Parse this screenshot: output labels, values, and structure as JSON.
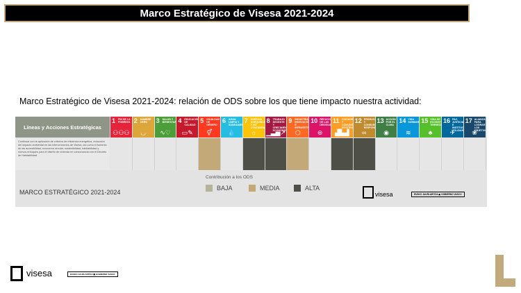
{
  "page_title": "Marco Estratégico de Visesa 2021-2024",
  "subtitle": "Marco Estratégico de Visesa 2021-2024: relación de ODS sobre los que tiene impacto nuestra actividad:",
  "table": {
    "header_label": "Líneas y Acciones Estratégicas",
    "action_text": "Continuar con la aplicación de criterios de eficiencia energética, reducción del impacto ambiental en las intervenciones de Visesa, así como el fomento de las accesibilidad, economía circular, sostenibilidad, habitabilidad y nuevos enfoques para el diseño de vivienda en consonancia con el Decreto de Habitabilidad.",
    "sdgs": [
      {
        "num": "1",
        "label": "Fin de la pobreza",
        "color": "#e5243b",
        "icon": "family-icon",
        "glyph": "⚇⚇⚇",
        "impact": "none"
      },
      {
        "num": "2",
        "label": "Hambre cero",
        "color": "#dda63a",
        "icon": "bowl-icon",
        "glyph": "◡",
        "impact": "none"
      },
      {
        "num": "3",
        "label": "Salud y bienestar",
        "color": "#4c9f38",
        "icon": "heartbeat-icon",
        "glyph": "∿♡",
        "impact": "none"
      },
      {
        "num": "4",
        "label": "Educación de calidad",
        "color": "#c5192d",
        "icon": "book-icon",
        "glyph": "▭✎",
        "impact": "none"
      },
      {
        "num": "5",
        "label": "Igualdad de género",
        "color": "#ff3a21",
        "icon": "gender-icon",
        "glyph": "⚥",
        "impact": "media"
      },
      {
        "num": "6",
        "label": "Agua limpia y saneamiento",
        "color": "#26bde2",
        "icon": "water-drop-icon",
        "glyph": "💧",
        "impact": "none"
      },
      {
        "num": "7",
        "label": "Energía asequible y no contaminante",
        "color": "#fcc30b",
        "icon": "sun-icon",
        "glyph": "☼",
        "impact": "alta"
      },
      {
        "num": "8",
        "label": "Trabajo decente y crecimiento económico",
        "color": "#a21942",
        "icon": "growth-chart-icon",
        "glyph": "▁▃▅↗",
        "impact": "alta"
      },
      {
        "num": "9",
        "label": "Industria, innovación e infraestructura",
        "color": "#fd6925",
        "icon": "cubes-icon",
        "glyph": "⬡",
        "impact": "media"
      },
      {
        "num": "10",
        "label": "Reducción de las desigualdades",
        "color": "#dd1367",
        "icon": "equal-icon",
        "glyph": "⊜",
        "impact": "none"
      },
      {
        "num": "11",
        "label": "Ciudades y comunidades sostenibles",
        "color": "#fd9d24",
        "icon": "city-icon",
        "glyph": "▟▙▟",
        "impact": "alta"
      },
      {
        "num": "12",
        "label": "Producción y consumo responsables",
        "color": "#bf8b2e",
        "icon": "infinity-icon",
        "glyph": "∞",
        "impact": "alta"
      },
      {
        "num": "13",
        "label": "Acción por el clima",
        "color": "#3f7e44",
        "icon": "eye-globe-icon",
        "glyph": "◉",
        "impact": "none"
      },
      {
        "num": "14",
        "label": "Vida submarina",
        "color": "#0a97d9",
        "icon": "fish-icon",
        "glyph": "≋",
        "impact": "none"
      },
      {
        "num": "15",
        "label": "Vida de ecosistemas terrestres",
        "color": "#56c02b",
        "icon": "tree-icon",
        "glyph": "♣",
        "impact": "none"
      },
      {
        "num": "16",
        "label": "Paz, justicia e instituciones sólidas",
        "color": "#00689d",
        "icon": "dove-icon",
        "glyph": "✈",
        "impact": "none"
      },
      {
        "num": "17",
        "label": "Alianzas para lograr los objetivos",
        "color": "#19486a",
        "icon": "flower-icon",
        "glyph": "❀",
        "impact": "none"
      }
    ]
  },
  "legend": {
    "title": "Contribución a los ODS",
    "items": [
      {
        "label": "BAJA",
        "color": "#b5b49a"
      },
      {
        "label": "MEDIA",
        "color": "#c3a878"
      },
      {
        "label": "ALTA",
        "color": "#4e4f47"
      }
    ]
  },
  "frame_label": "MARCO ESTRATÉGICO 2021-2024",
  "brand": {
    "word": "visesa",
    "gov_left": "EUSKO JAURLARITZA",
    "gov_right": "GOBIERNO VASCO"
  },
  "colors": {
    "title_bg": "#000000",
    "accent_gold": "#c3aa7c",
    "impact_media": "#c3a878",
    "impact_alta": "#4e4f47",
    "impact_none": "#e6e6e6"
  }
}
